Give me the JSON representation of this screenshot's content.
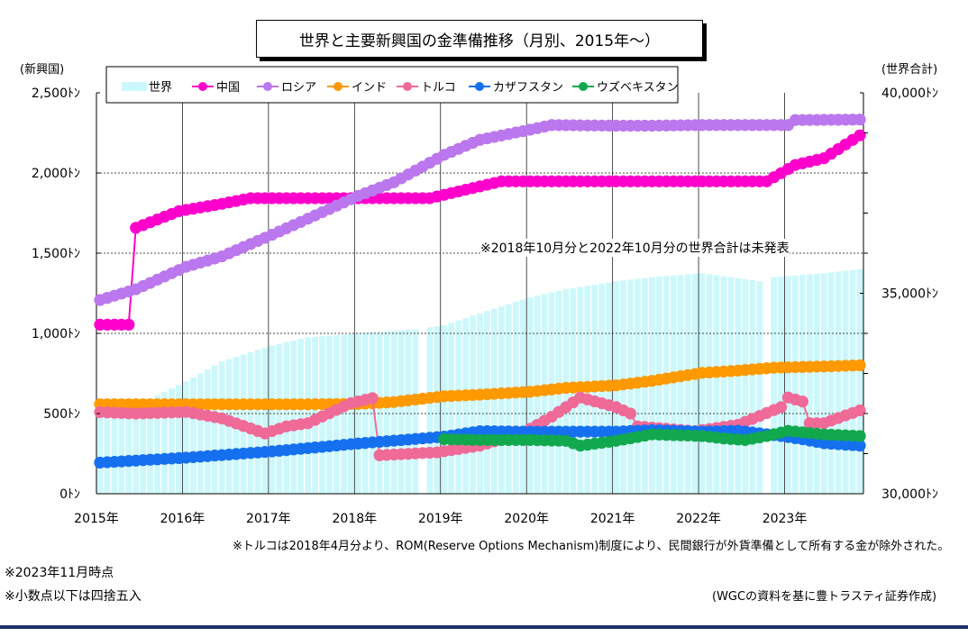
{
  "title": "世界と主要新興国の金準備推移（月別、2015年～）",
  "left_axis_label": "(新興国)",
  "right_axis_label": "(世界合計)",
  "notes": {
    "in_chart": "※2018年10月分と2022年10月分の世界合計は未発表",
    "turkey": "※トルコは2018年4月分より、ROM(Reserve Options Mechanism)制度により、民間銀行が外貨準備として所有する金が除外された。",
    "as_of": "※2023年11月時点",
    "rounding": "※小数点以下は四捨五入",
    "source": "(WGCの資料を基に豊トラスティ証券作成)"
  },
  "chart_data": {
    "type": "line",
    "title": "世界と主要新興国の金準備推移（月別、2015年～）",
    "ylabel": "(新興国)",
    "y2label": "(世界合計)",
    "ylim": [
      0,
      2500
    ],
    "y2lim": [
      30000,
      40000
    ],
    "yticks": [
      "0ﾄﾝ",
      "500ﾄﾝ",
      "1,000ﾄﾝ",
      "1,500ﾄﾝ",
      "2,000ﾄﾝ",
      "2,500ﾄﾝ"
    ],
    "y2ticks": [
      "30,000ﾄﾝ",
      "35,000ﾄﾝ",
      "40,000ﾄﾝ"
    ],
    "xticks": [
      "2015年",
      "2016年",
      "2017年",
      "2018年",
      "2019年",
      "2020年",
      "2021年",
      "2022年",
      "2023年"
    ],
    "x_start": "2015-01",
    "x_end": "2023-11",
    "legend_position": "top-left",
    "grid": true,
    "world": {
      "name": "世界",
      "color": "#cdf8fb",
      "axis": "right",
      "anchors": [
        [
          "2015-01",
          31900
        ],
        [
          "2015-06",
          32200
        ],
        [
          "2016-01",
          32800
        ],
        [
          "2016-06",
          33300
        ],
        [
          "2017-01",
          33700
        ],
        [
          "2017-06",
          33900
        ],
        [
          "2018-01",
          34000
        ],
        [
          "2018-09",
          34100
        ],
        [
          "2019-01",
          34200
        ],
        [
          "2019-06",
          34500
        ],
        [
          "2020-01",
          34900
        ],
        [
          "2020-06",
          35100
        ],
        [
          "2021-01",
          35300
        ],
        [
          "2021-06",
          35400
        ],
        [
          "2022-01",
          35500
        ],
        [
          "2022-09",
          35300
        ],
        [
          "2022-11",
          35400
        ],
        [
          "2023-06",
          35500
        ],
        [
          "2023-11",
          35600
        ]
      ],
      "missing": [
        "2018-10",
        "2022-10"
      ]
    },
    "series": [
      {
        "name": "中国",
        "color": "#ff00cc",
        "anchors": [
          [
            "2015-01",
            1054
          ],
          [
            "2015-05",
            1054
          ],
          [
            "2015-06",
            1658
          ],
          [
            "2015-12",
            1762
          ],
          [
            "2016-06",
            1808
          ],
          [
            "2016-10",
            1843
          ],
          [
            "2018-11",
            1843
          ],
          [
            "2019-09",
            1948
          ],
          [
            "2022-10",
            1948
          ],
          [
            "2023-02",
            2050
          ],
          [
            "2023-06",
            2092
          ],
          [
            "2023-11",
            2235
          ]
        ]
      },
      {
        "name": "ロシア",
        "color": "#bb77ee",
        "anchors": [
          [
            "2015-01",
            1208
          ],
          [
            "2015-06",
            1275
          ],
          [
            "2016-01",
            1415
          ],
          [
            "2016-06",
            1480
          ],
          [
            "2017-01",
            1615
          ],
          [
            "2017-06",
            1715
          ],
          [
            "2018-01",
            1857
          ],
          [
            "2018-06",
            1942
          ],
          [
            "2019-01",
            2113
          ],
          [
            "2019-06",
            2207
          ],
          [
            "2020-01",
            2270
          ],
          [
            "2020-04",
            2299
          ],
          [
            "2021-01",
            2295
          ],
          [
            "2021-06",
            2295
          ],
          [
            "2022-01",
            2299
          ],
          [
            "2023-01",
            2299
          ],
          [
            "2023-02",
            2330
          ],
          [
            "2023-11",
            2333
          ]
        ]
      },
      {
        "name": "インド",
        "color": "#ff9900",
        "anchors": [
          [
            "2015-01",
            558
          ],
          [
            "2017-06",
            558
          ],
          [
            "2018-01",
            560
          ],
          [
            "2018-06",
            572
          ],
          [
            "2019-01",
            608
          ],
          [
            "2019-06",
            618
          ],
          [
            "2020-01",
            636
          ],
          [
            "2020-06",
            660
          ],
          [
            "2021-01",
            676
          ],
          [
            "2021-06",
            704
          ],
          [
            "2022-01",
            754
          ],
          [
            "2022-06",
            768
          ],
          [
            "2022-11",
            786
          ],
          [
            "2023-06",
            794
          ],
          [
            "2023-11",
            801
          ]
        ]
      },
      {
        "name": "トルコ",
        "color": "#f06a98",
        "anchors": [
          [
            "2015-01",
            509
          ],
          [
            "2015-06",
            500
          ],
          [
            "2016-01",
            510
          ],
          [
            "2016-06",
            470
          ],
          [
            "2016-12",
            376
          ],
          [
            "2017-03",
            420
          ],
          [
            "2017-06",
            440
          ],
          [
            "2017-12",
            565
          ],
          [
            "2018-03",
            596
          ],
          [
            "2018-04",
            240
          ],
          [
            "2018-12",
            258
          ],
          [
            "2019-06",
            300
          ],
          [
            "2019-12",
            380
          ],
          [
            "2020-04",
            480
          ],
          [
            "2020-08",
            600
          ],
          [
            "2021-01",
            540
          ],
          [
            "2021-03",
            500
          ],
          [
            "2021-04",
            420
          ],
          [
            "2021-12",
            390
          ],
          [
            "2022-06",
            430
          ],
          [
            "2022-12",
            540
          ],
          [
            "2023-01",
            600
          ],
          [
            "2023-03",
            575
          ],
          [
            "2023-04",
            440
          ],
          [
            "2023-06",
            440
          ],
          [
            "2023-11",
            520
          ]
        ]
      },
      {
        "name": "カザフスタン",
        "color": "#1570f0",
        "anchors": [
          [
            "2015-01",
            194
          ],
          [
            "2016-01",
            225
          ],
          [
            "2017-01",
            264
          ],
          [
            "2018-01",
            313
          ],
          [
            "2019-01",
            356
          ],
          [
            "2019-06",
            390
          ],
          [
            "2020-01",
            387
          ],
          [
            "2021-01",
            387
          ],
          [
            "2021-06",
            397
          ],
          [
            "2022-01",
            387
          ],
          [
            "2022-06",
            393
          ],
          [
            "2022-12",
            360
          ],
          [
            "2023-03",
            340
          ],
          [
            "2023-06",
            315
          ],
          [
            "2023-11",
            300
          ]
        ]
      },
      {
        "name": "ウズベキスタン",
        "color": "#11a84e",
        "start": "2019-01",
        "anchors": [
          [
            "2019-01",
            340
          ],
          [
            "2019-06",
            335
          ],
          [
            "2020-01",
            335
          ],
          [
            "2020-06",
            330
          ],
          [
            "2020-08",
            300
          ],
          [
            "2021-01",
            330
          ],
          [
            "2021-06",
            370
          ],
          [
            "2022-01",
            360
          ],
          [
            "2022-04",
            345
          ],
          [
            "2022-07",
            335
          ],
          [
            "2022-10",
            360
          ],
          [
            "2023-01",
            392
          ],
          [
            "2023-06",
            370
          ],
          [
            "2023-11",
            360
          ]
        ]
      }
    ]
  }
}
